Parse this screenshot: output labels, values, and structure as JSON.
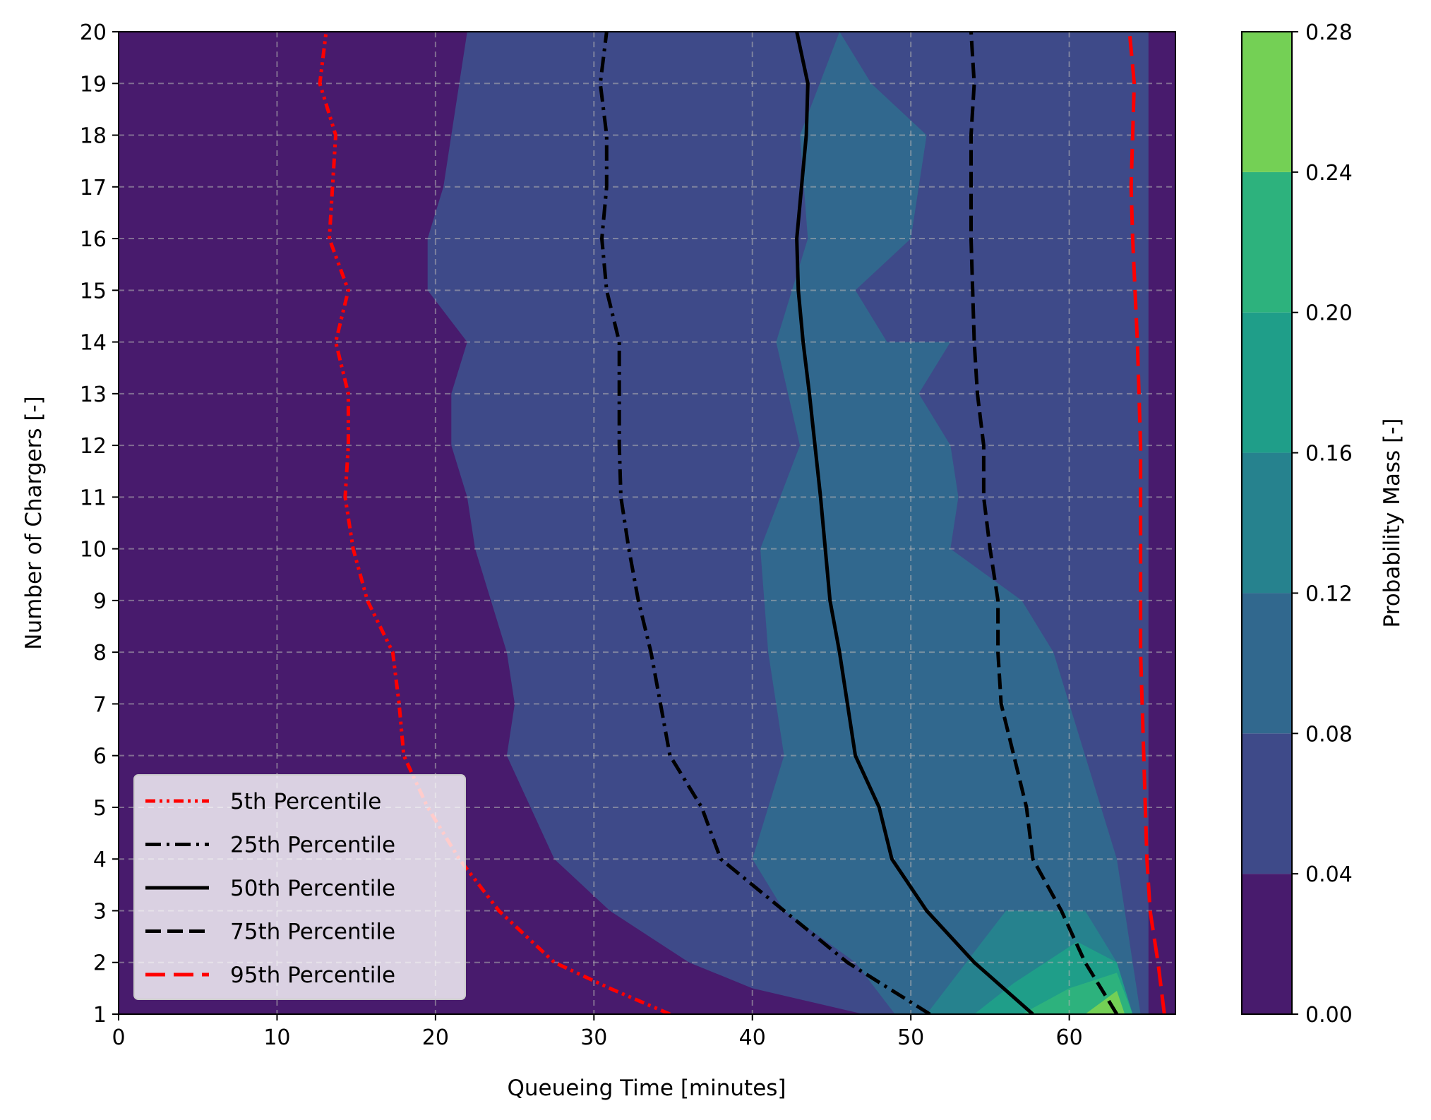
{
  "chart_data": {
    "type": "contourf",
    "xlabel": "Queueing Time [minutes]",
    "ylabel": "Number of Chargers [-]",
    "xlim": [
      0,
      66.7
    ],
    "ylim": [
      1,
      20
    ],
    "xticks": [
      0,
      10,
      20,
      30,
      40,
      50,
      60
    ],
    "yticks": [
      1,
      2,
      3,
      4,
      5,
      6,
      7,
      8,
      9,
      10,
      11,
      12,
      13,
      14,
      15,
      16,
      17,
      18,
      19,
      20
    ],
    "grid": true,
    "colorbar": {
      "label": "Probability Mass [-]",
      "levels": [
        0.0,
        0.04,
        0.08,
        0.12,
        0.16,
        0.2,
        0.24,
        0.28
      ],
      "tick_labels": [
        "0.00",
        "0.04",
        "0.08",
        "0.12",
        "0.16",
        "0.20",
        "0.24",
        "0.28"
      ],
      "colors": [
        "#481b6d",
        "#3e4a89",
        "#31688e",
        "#26828e",
        "#1f9e89",
        "#2db27d",
        "#74d055",
        "#d0e11c"
      ]
    },
    "contour_regions": [
      {
        "level_index": 1,
        "range": [
          0.04,
          0.08
        ],
        "boundary": [
          [
            22.0,
            20
          ],
          [
            21.0,
            18
          ],
          [
            20.5,
            17
          ],
          [
            19.5,
            16
          ],
          [
            19.5,
            15
          ],
          [
            22.0,
            14
          ],
          [
            21.0,
            13
          ],
          [
            21.0,
            12
          ],
          [
            22.0,
            11
          ],
          [
            22.5,
            10
          ],
          [
            23.5,
            9
          ],
          [
            24.5,
            8
          ],
          [
            25.0,
            7
          ],
          [
            24.5,
            6
          ],
          [
            26.0,
            5
          ],
          [
            27.5,
            4
          ],
          [
            31.0,
            3
          ],
          [
            36.0,
            2
          ],
          [
            40.0,
            1.5
          ],
          [
            47.0,
            1
          ],
          [
            65.0,
            1
          ],
          [
            65.0,
            20
          ]
        ]
      },
      {
        "level_index": 2,
        "range": [
          0.08,
          0.12
        ],
        "boundary": [
          [
            45.5,
            20
          ],
          [
            47.5,
            19
          ],
          [
            51.0,
            18
          ],
          [
            50.0,
            16
          ],
          [
            46.5,
            15
          ],
          [
            48.5,
            14
          ],
          [
            52.5,
            14
          ],
          [
            50.5,
            13
          ],
          [
            52.5,
            12
          ],
          [
            53.0,
            11
          ],
          [
            52.5,
            10
          ],
          [
            57.0,
            9
          ],
          [
            59.0,
            8
          ],
          [
            61.0,
            6
          ],
          [
            63.0,
            4
          ],
          [
            64.0,
            2
          ],
          [
            64.5,
            1
          ],
          [
            49.0,
            1
          ],
          [
            46.5,
            2
          ],
          [
            42.0,
            3
          ],
          [
            40.0,
            4
          ],
          [
            42.0,
            6
          ],
          [
            41.0,
            8
          ],
          [
            40.5,
            10
          ],
          [
            43.0,
            12
          ],
          [
            41.5,
            14
          ],
          [
            43.5,
            16
          ],
          [
            43.0,
            18
          ]
        ]
      },
      {
        "level_index": 3,
        "range": [
          0.12,
          0.16
        ],
        "boundary": [
          [
            51.0,
            1
          ],
          [
            53.5,
            2
          ],
          [
            56.0,
            3
          ],
          [
            61.0,
            3
          ],
          [
            63.0,
            2
          ],
          [
            63.5,
            1
          ]
        ]
      },
      {
        "level_index": 4,
        "range": [
          0.16,
          0.2
        ],
        "boundary": [
          [
            54.0,
            1
          ],
          [
            56.5,
            1.6
          ],
          [
            60.5,
            2.4
          ],
          [
            63.0,
            2
          ],
          [
            64.0,
            1
          ]
        ]
      },
      {
        "level_index": 5,
        "range": [
          0.2,
          0.24
        ],
        "boundary": [
          [
            57.0,
            1
          ],
          [
            60.0,
            1.5
          ],
          [
            63.0,
            1.8
          ],
          [
            64.0,
            1
          ]
        ]
      },
      {
        "level_index": 6,
        "range": [
          0.24,
          0.28
        ],
        "boundary": [
          [
            61.0,
            1
          ],
          [
            63.0,
            1.45
          ],
          [
            63.5,
            1
          ]
        ]
      }
    ],
    "series": [
      {
        "name": "5th Percentile",
        "color": "#ff0000",
        "linestyle": "dash-dot-dot",
        "x": [
          34.8,
          31.0,
          27.5,
          24.0,
          21.5,
          19.5,
          18.0,
          17.7,
          17.3,
          15.7,
          14.8,
          14.3,
          14.5,
          14.5,
          13.7,
          14.5,
          13.3,
          13.5,
          13.7,
          12.7,
          13.1
        ],
        "y": [
          1,
          1.5,
          2,
          3,
          4,
          5,
          6,
          7,
          8,
          9,
          10,
          11,
          12,
          13,
          14,
          15,
          16,
          17,
          18,
          19,
          20
        ]
      },
      {
        "name": "25th Percentile",
        "color": "#000000",
        "linestyle": "dash-dot",
        "x": [
          51.2,
          46.0,
          42.0,
          38.0,
          36.8,
          34.8,
          34.2,
          33.6,
          32.8,
          32.2,
          31.7,
          31.6,
          31.6,
          30.8,
          30.5,
          30.8,
          30.8,
          30.4,
          30.8
        ],
        "y": [
          1,
          2,
          3,
          4,
          5,
          6,
          7,
          8,
          9,
          10,
          11,
          12,
          14,
          15,
          16,
          17,
          18,
          19,
          20
        ]
      },
      {
        "name": "50th Percentile",
        "color": "#000000",
        "linestyle": "solid",
        "x": [
          57.7,
          54.0,
          51.0,
          48.8,
          48.0,
          46.5,
          46.0,
          45.5,
          44.9,
          44.6,
          44.3,
          43.6,
          43.2,
          42.9,
          42.8,
          43.4,
          43.5,
          42.8
        ],
        "y": [
          1,
          2,
          3,
          4,
          5,
          6,
          7,
          8,
          9,
          10,
          11,
          13,
          14,
          15,
          16,
          18,
          19,
          20
        ]
      },
      {
        "name": "75th Percentile",
        "color": "#000000",
        "linestyle": "dashed",
        "x": [
          63.0,
          61.0,
          59.5,
          57.7,
          57.3,
          56.5,
          55.7,
          55.5,
          55.5,
          55.0,
          54.6,
          54.6,
          54.2,
          54.0,
          53.8,
          53.8,
          54.0,
          53.8
        ],
        "y": [
          1,
          2,
          3,
          4,
          5,
          6,
          7,
          8,
          9,
          10,
          11,
          12,
          13,
          14,
          16,
          18,
          19,
          20
        ]
      },
      {
        "name": "95th Percentile",
        "color": "#ff0000",
        "linestyle": "long-dash",
        "x": [
          66.0,
          65.6,
          65.1,
          64.9,
          64.7,
          64.5,
          64.5,
          64.5,
          64.3,
          64.0,
          63.9,
          64.1,
          63.8
        ],
        "y": [
          1,
          2,
          3,
          4,
          6,
          8,
          10,
          12,
          14,
          16,
          17,
          19,
          20
        ]
      }
    ],
    "legend_position": "lower-left"
  }
}
